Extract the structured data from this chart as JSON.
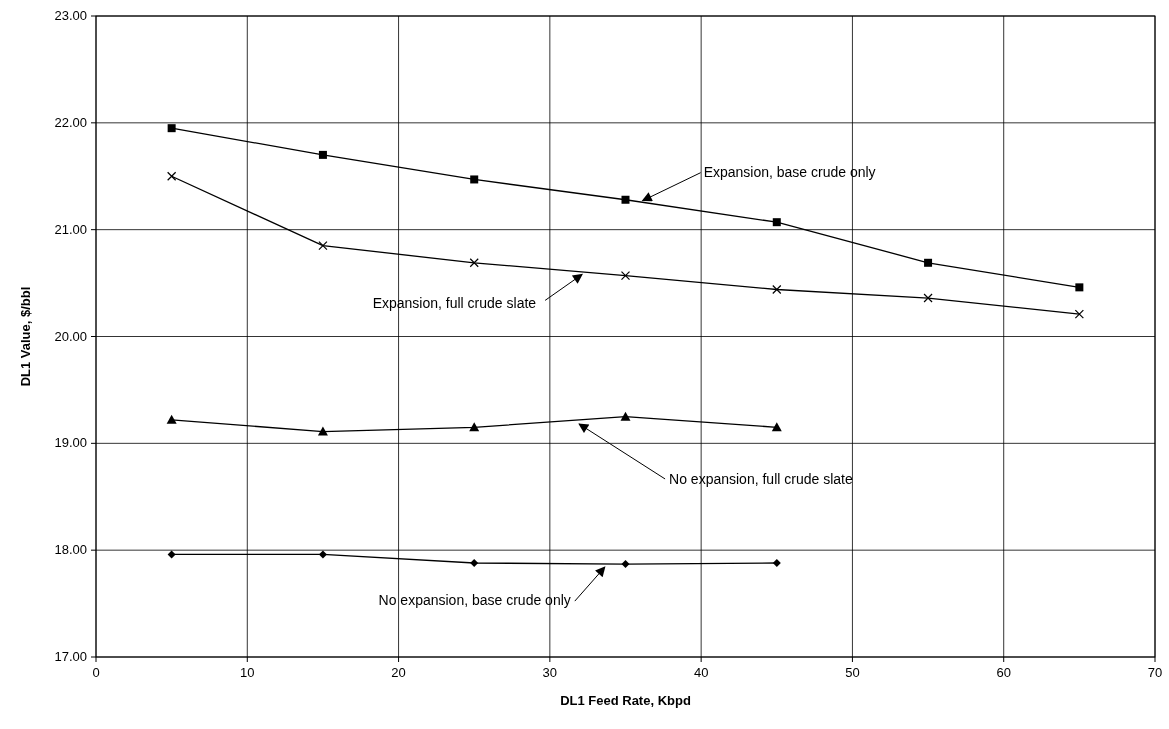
{
  "chart_data": {
    "type": "line",
    "xlabel": "DL1 Feed Rate, Kbpd",
    "ylabel": "DL1 Value, $/bbl",
    "xlim": [
      0,
      70
    ],
    "xticks": [
      0,
      10,
      20,
      30,
      40,
      50,
      60,
      70
    ],
    "ylim": [
      17,
      23
    ],
    "yticks": [
      {
        "value": 17,
        "label": "17.00"
      },
      {
        "value": 18,
        "label": "18.00"
      },
      {
        "value": 19,
        "label": "19.00"
      },
      {
        "value": 20,
        "label": "20.00"
      },
      {
        "value": 21,
        "label": "21.00"
      },
      {
        "value": 22,
        "label": "22.00"
      },
      {
        "value": 23,
        "label": "23.00"
      }
    ],
    "grid": true,
    "line_style": "solid",
    "series": [
      {
        "color": "#000000",
        "marker": "square",
        "x": [
          5,
          15,
          25,
          35,
          45,
          55,
          65
        ],
        "values": [
          21.95,
          21.7,
          21.47,
          21.28,
          21.07,
          20.69,
          20.46
        ]
      },
      {
        "color": "#000000",
        "marker": "cross",
        "x": [
          5,
          15,
          25,
          35,
          45,
          55,
          65
        ],
        "values": [
          21.5,
          20.85,
          20.69,
          20.57,
          20.44,
          20.36,
          20.21
        ]
      },
      {
        "color": "#000000",
        "marker": "triangle",
        "x": [
          5,
          15,
          25,
          35,
          45
        ],
        "values": [
          19.22,
          19.11,
          19.15,
          19.25,
          19.15
        ]
      },
      {
        "color": "#000000",
        "marker": "diamond",
        "x": [
          5,
          15,
          25,
          35,
          45
        ],
        "values": [
          17.96,
          17.96,
          17.88,
          17.87,
          17.88
        ]
      }
    ],
    "annotations": [
      {
        "text": "Expansion, base crude only",
        "x": 36,
        "y": 21.29
      },
      {
        "text": "Expansion, full crude slate",
        "x": 32,
        "y": 20.6
      },
      {
        "text": "No expansion, full crude slate",
        "x": 31.8,
        "y": 19.2
      },
      {
        "text": "No expansion, base crude only",
        "x": 33.5,
        "y": 17.86
      }
    ]
  }
}
